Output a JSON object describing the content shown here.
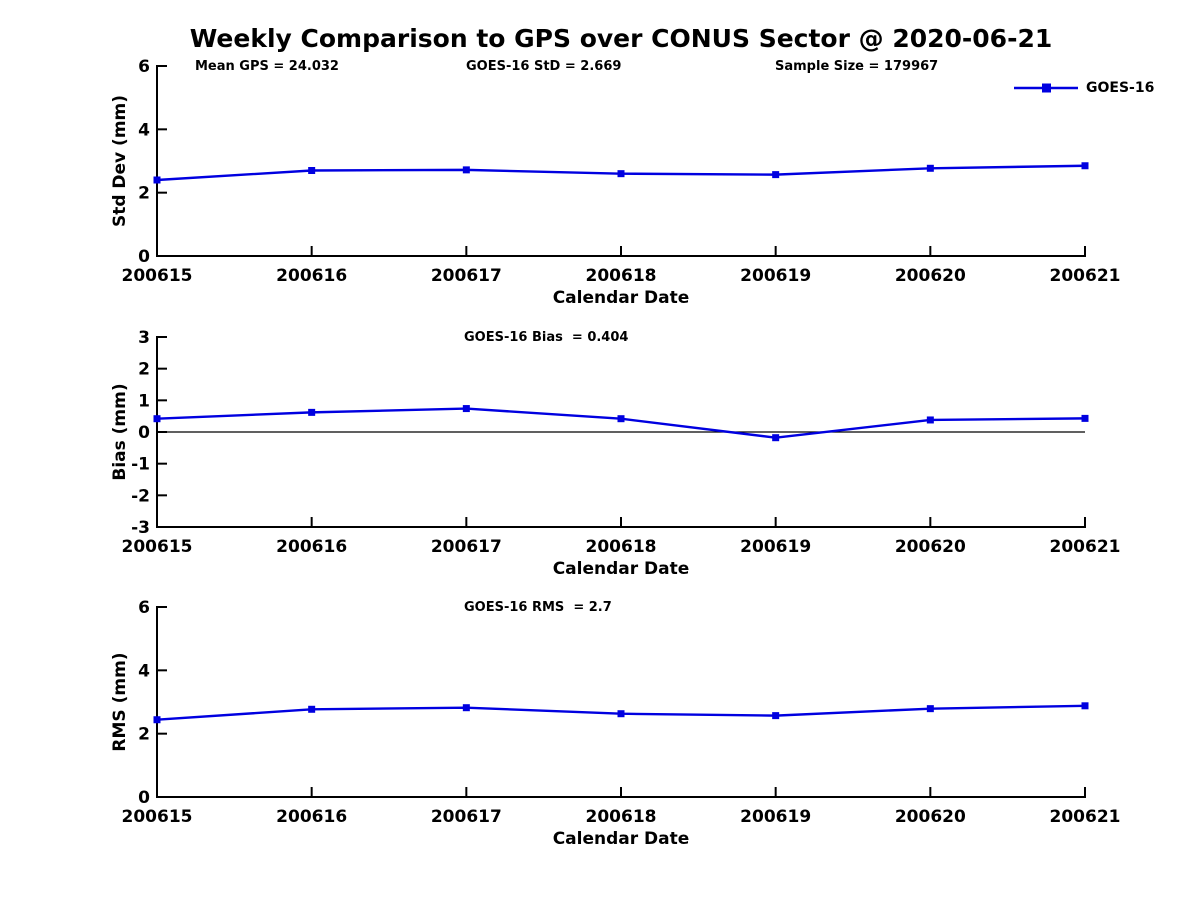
{
  "title": "Weekly Comparison to GPS over CONUS Sector @ 2020-06-21",
  "colors": {
    "series": "#0000e0",
    "axis": "#000000",
    "text": "#000000",
    "background": "#ffffff"
  },
  "legend": {
    "label": "GOES-16"
  },
  "annotations": {
    "mean_gps": "Mean GPS = 24.032",
    "std": "GOES-16 StD = 2.669",
    "sample_size": "Sample Size = 179967",
    "bias": "GOES-16 Bias  = 0.404",
    "rms": "GOES-16 RMS  = 2.7"
  },
  "chart_data": [
    {
      "type": "line",
      "name": "std-dev-subplot",
      "categories": [
        "200615",
        "200616",
        "200617",
        "200618",
        "200619",
        "200620",
        "200621"
      ],
      "series": [
        {
          "name": "GOES-16",
          "values": [
            2.4,
            2.7,
            2.72,
            2.6,
            2.57,
            2.77,
            2.85
          ]
        }
      ],
      "xlabel": "Calendar Date",
      "ylabel": "Std Dev (mm)",
      "ylim": [
        0,
        6
      ],
      "yticks": [
        0,
        2,
        4,
        6
      ],
      "grid": false,
      "zero_line": false,
      "marker": "square",
      "legend_position": "top-right"
    },
    {
      "type": "line",
      "name": "bias-subplot",
      "categories": [
        "200615",
        "200616",
        "200617",
        "200618",
        "200619",
        "200620",
        "200621"
      ],
      "series": [
        {
          "name": "GOES-16",
          "values": [
            0.42,
            0.62,
            0.74,
            0.42,
            -0.18,
            0.38,
            0.43
          ]
        }
      ],
      "xlabel": "Calendar Date",
      "ylabel": "Bias (mm)",
      "ylim": [
        -3,
        3
      ],
      "yticks": [
        -3,
        -2,
        -1,
        0,
        1,
        2,
        3
      ],
      "grid": false,
      "zero_line": true,
      "marker": "square",
      "legend_position": "none"
    },
    {
      "type": "line",
      "name": "rms-subplot",
      "categories": [
        "200615",
        "200616",
        "200617",
        "200618",
        "200619",
        "200620",
        "200621"
      ],
      "series": [
        {
          "name": "GOES-16",
          "values": [
            2.44,
            2.77,
            2.82,
            2.63,
            2.57,
            2.79,
            2.88
          ]
        }
      ],
      "xlabel": "Calendar Date",
      "ylabel": "RMS (mm)",
      "ylim": [
        0,
        6
      ],
      "yticks": [
        0,
        2,
        4,
        6
      ],
      "grid": false,
      "zero_line": false,
      "marker": "square",
      "legend_position": "none"
    }
  ]
}
